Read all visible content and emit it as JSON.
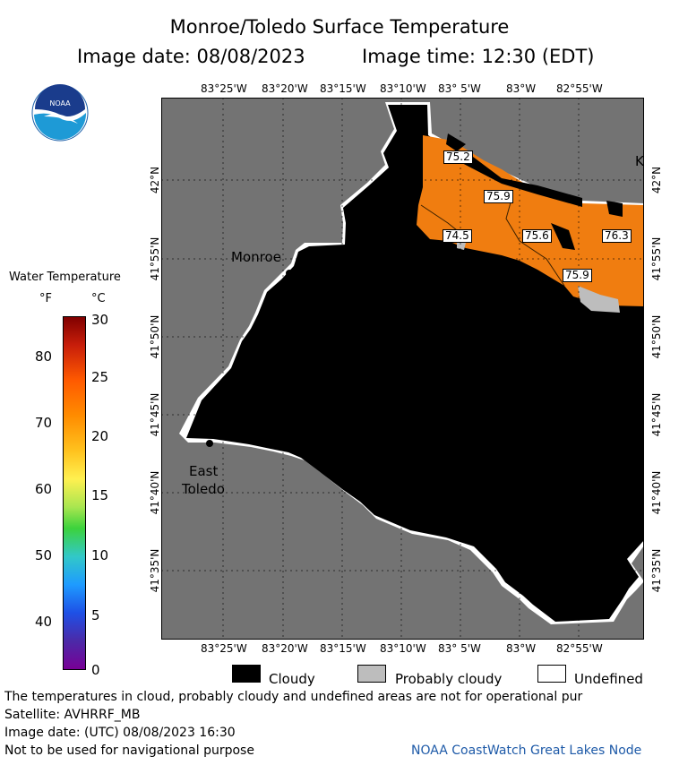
{
  "header": {
    "title": "Monroe/Toledo Surface Temperature",
    "image_date_label": "Image date: 08/08/2023",
    "image_time_label": "Image time: 12:30 (EDT)"
  },
  "map": {
    "lon_ticks": [
      "83°25'W",
      "83°20'W",
      "83°15'W",
      "83°10'W",
      "83° 5'W",
      "83°W",
      "82°55'W"
    ],
    "lat_ticks": [
      "42°N",
      "41°55'N",
      "41°50'N",
      "41°45'N",
      "41°40'N",
      "41°35'N"
    ],
    "places": {
      "monroe": "Monroe",
      "east_toledo_1": "East",
      "east_toledo_2": "Toledo",
      "k": "K"
    },
    "temperature_labels": [
      "75.2",
      "75.9",
      "74.5",
      "75.6",
      "76.3",
      "75.9"
    ],
    "colors": {
      "land": "#737373",
      "cloud": "#000000",
      "water_warm": "#f07d10",
      "probably_cloudy": "#bdbdbd",
      "undefined": "#ffffff"
    }
  },
  "colorbar": {
    "title": "Water Temperature",
    "unit_f": "°F",
    "unit_c": "°C",
    "f_ticks": [
      "80",
      "70",
      "60",
      "50",
      "40"
    ],
    "c_ticks": [
      "30",
      "25",
      "20",
      "15",
      "10",
      "5",
      "0"
    ]
  },
  "key": {
    "cloudy": "Cloudy",
    "probably_cloudy": "Probably cloudy",
    "undefined": "Undefined"
  },
  "footer": {
    "note": "The temperatures in cloud, probably cloudy and undefined areas are not for operational pur",
    "satellite": "Satellite: AVHRRF_MB",
    "utc_date": "Image date: (UTC) 08/08/2023  16:30",
    "nav_warning": "Not to be used for navigational purpose",
    "credit": "NOAA CoastWatch Great Lakes Node"
  },
  "logo": {
    "text": "NOAA"
  }
}
